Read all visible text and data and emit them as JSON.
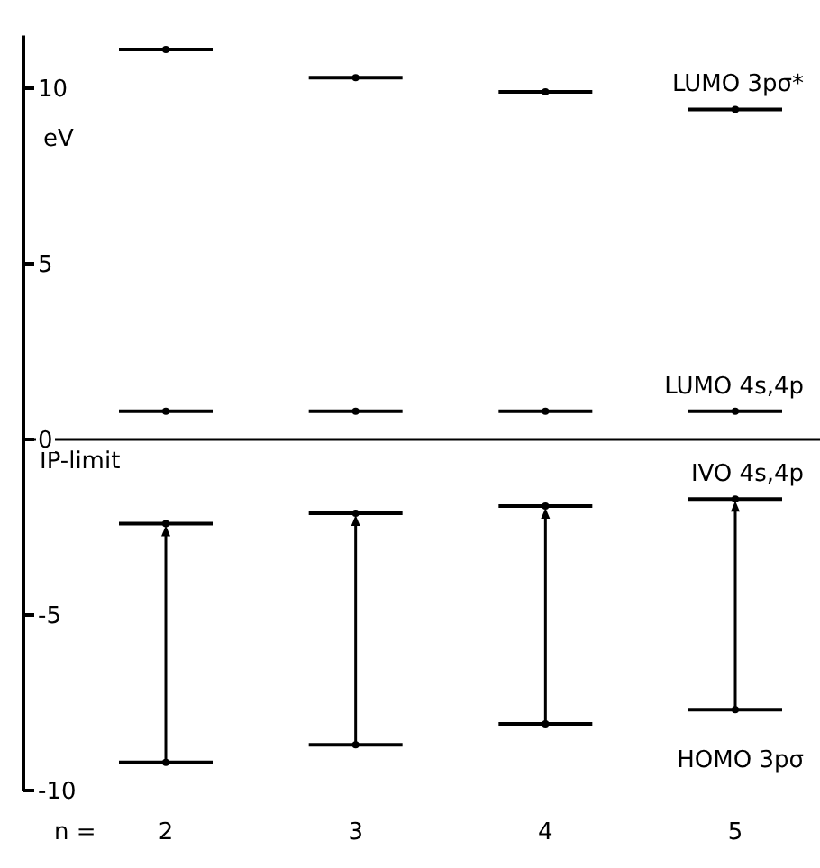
{
  "chart_data": {
    "type": "scatter",
    "ylabel": "eV",
    "xlabel": "n =",
    "categories": [
      "2",
      "3",
      "4",
      "5"
    ],
    "series": [
      {
        "name": "LUMO 3pσ*",
        "color": "#000000",
        "values": [
          11.1,
          10.3,
          9.9,
          9.4
        ]
      },
      {
        "name": "LUMO 4s,4p",
        "color": "#000000",
        "values": [
          0.8,
          0.8,
          0.8,
          0.8
        ]
      },
      {
        "name": "IVO 4s,4p",
        "color": "#000000",
        "values": [
          -2.4,
          -2.1,
          -1.9,
          -1.7
        ]
      },
      {
        "name": "HOMO 3pσ",
        "color": "#000000",
        "values": [
          -9.2,
          -8.7,
          -8.1,
          -7.7
        ]
      }
    ],
    "ylim": [
      -10,
      11.5
    ],
    "yticks": [
      -10,
      -5,
      0,
      5,
      10
    ],
    "ref_lines": [
      {
        "axis": "y",
        "value": 0,
        "label": "IP-limit"
      }
    ]
  }
}
